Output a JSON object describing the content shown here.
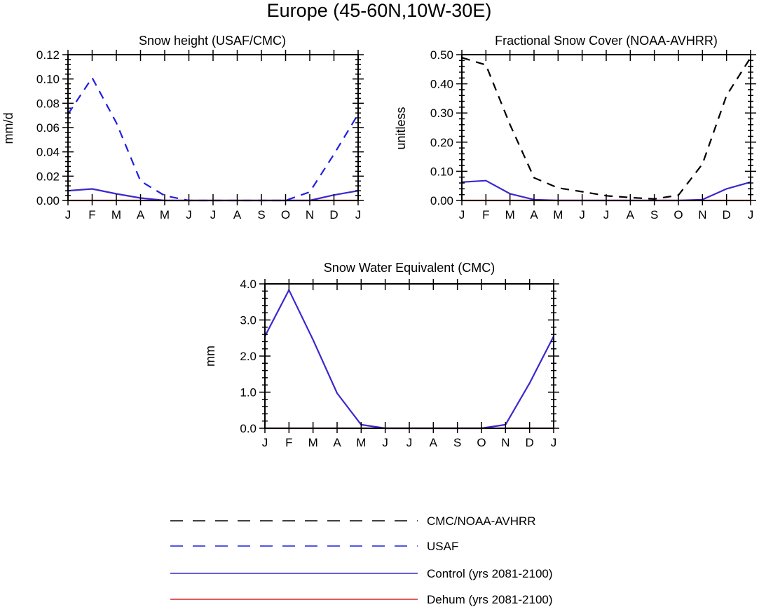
{
  "figure": {
    "title": "Europe (45-60N,10W-30E)"
  },
  "chart_data": [
    {
      "type": "line",
      "title": "Snow height (USAF/CMC)",
      "xlabel": "",
      "ylabel": "mm/d",
      "categories": [
        "J",
        "F",
        "M",
        "A",
        "M",
        "J",
        "J",
        "A",
        "S",
        "O",
        "N",
        "D",
        "J"
      ],
      "ylim": [
        0,
        0.12
      ],
      "yticks": [
        0.0,
        0.02,
        0.04,
        0.06,
        0.08,
        0.1,
        0.12
      ],
      "ytick_labels": [
        "0.00",
        "0.02",
        "0.04",
        "0.06",
        "0.08",
        "0.10",
        "0.12"
      ],
      "series": [
        {
          "name": "USAF",
          "color": "#1f1fe0",
          "dash": "dashed",
          "values": [
            0.071,
            0.101,
            0.064,
            0.016,
            0.004,
            0.0,
            0.0,
            0.0,
            0.0,
            0.0,
            0.007,
            0.038,
            0.071
          ]
        },
        {
          "name": "Control (yrs 2081-2100)",
          "color": "#3a28d0",
          "dash": "solid",
          "values": [
            0.008,
            0.0095,
            0.0055,
            0.002,
            0.0,
            0.0,
            0.0,
            0.0,
            0.0,
            0.0,
            0.0,
            0.0045,
            0.008
          ]
        },
        {
          "name": "Dehum (yrs 2081-2100)",
          "color": "#e02020",
          "dash": "solid",
          "values": [
            0,
            0,
            0,
            0,
            0,
            0,
            0,
            0,
            0,
            0,
            0,
            0,
            0
          ]
        }
      ]
    },
    {
      "type": "line",
      "title": "Fractional Snow Cover (NOAA-AVHRR)",
      "xlabel": "",
      "ylabel": "unitless",
      "categories": [
        "J",
        "F",
        "M",
        "A",
        "M",
        "J",
        "J",
        "A",
        "S",
        "O",
        "N",
        "D",
        "J"
      ],
      "ylim": [
        0,
        0.5
      ],
      "yticks": [
        0.0,
        0.1,
        0.2,
        0.3,
        0.4,
        0.5
      ],
      "ytick_labels": [
        "0.00",
        "0.10",
        "0.20",
        "0.30",
        "0.40",
        "0.50"
      ],
      "series": [
        {
          "name": "CMC/NOAA-AVHRR",
          "color": "#000000",
          "dash": "dashed",
          "values": [
            0.49,
            0.465,
            0.26,
            0.078,
            0.043,
            0.03,
            0.016,
            0.01,
            0.005,
            0.018,
            0.125,
            0.36,
            0.49
          ]
        },
        {
          "name": "Control (yrs 2081-2100)",
          "color": "#3a28d0",
          "dash": "solid",
          "values": [
            0.063,
            0.068,
            0.023,
            0.003,
            0.0,
            0.0,
            0.0,
            0.0,
            0.0,
            0.0,
            0.003,
            0.04,
            0.063
          ]
        },
        {
          "name": "Dehum (yrs 2081-2100)",
          "color": "#e02020",
          "dash": "solid",
          "values": [
            0,
            0,
            0,
            0,
            0,
            0,
            0,
            0,
            0,
            0,
            0,
            0,
            0
          ]
        }
      ]
    },
    {
      "type": "line",
      "title": "Snow Water Equivalent (CMC)",
      "xlabel": "",
      "ylabel": "mm",
      "categories": [
        "J",
        "F",
        "M",
        "A",
        "M",
        "J",
        "J",
        "A",
        "S",
        "O",
        "N",
        "D",
        "J"
      ],
      "ylim": [
        0,
        4.0
      ],
      "yticks": [
        0.0,
        1.0,
        2.0,
        3.0,
        4.0
      ],
      "ytick_labels": [
        "0.0",
        "1.0",
        "2.0",
        "3.0",
        "4.0"
      ],
      "series": [
        {
          "name": "Control (yrs 2081-2100)",
          "color": "#3a28d0",
          "dash": "solid",
          "values": [
            2.55,
            3.83,
            2.45,
            0.97,
            0.1,
            0.0,
            0.0,
            0.0,
            0.0,
            0.0,
            0.1,
            1.25,
            2.55
          ]
        },
        {
          "name": "Dehum (yrs 2081-2100)",
          "color": "#e02020",
          "dash": "solid",
          "values": [
            0,
            0,
            0,
            0,
            0,
            0,
            0,
            0,
            0,
            0,
            0,
            0,
            0
          ]
        }
      ]
    }
  ],
  "legend": {
    "placement": "bottom",
    "entries": [
      {
        "label": "CMC/NOAA-AVHRR",
        "color": "#000000",
        "dash": "dashed"
      },
      {
        "label": "USAF",
        "color": "#1f1fe0",
        "dash": "dashed"
      },
      {
        "label": "Control (yrs 2081-2100)",
        "color": "#3a28d0",
        "dash": "solid"
      },
      {
        "label": "Dehum (yrs 2081-2100)",
        "color": "#e02020",
        "dash": "solid"
      }
    ]
  }
}
